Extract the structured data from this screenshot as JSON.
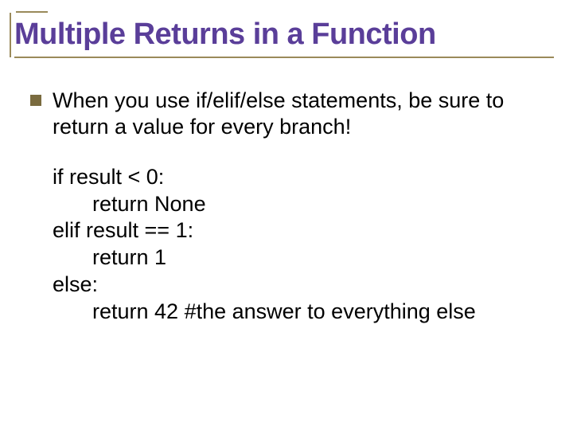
{
  "slide": {
    "title": "Multiple Returns in a Function",
    "title_color": "#5a3e99",
    "rule_color": "#9a8a5a",
    "bullet_color": "#7a6b3f",
    "background_color": "#ffffff",
    "body_font_size": 27,
    "title_font_size": 38,
    "bullet": {
      "text": "When you use if/elif/else statements, be sure to return a value for every branch!"
    },
    "code": {
      "lines": [
        {
          "text": "if result < 0:",
          "indent": 0
        },
        {
          "text": "return None",
          "indent": 1
        },
        {
          "text": "elif result == 1:",
          "indent": 0
        },
        {
          "text": "return 1",
          "indent": 1
        },
        {
          "text": "else:",
          "indent": 0
        },
        {
          "text": "return 42 #the answer to everything else",
          "indent": 1
        }
      ]
    }
  }
}
